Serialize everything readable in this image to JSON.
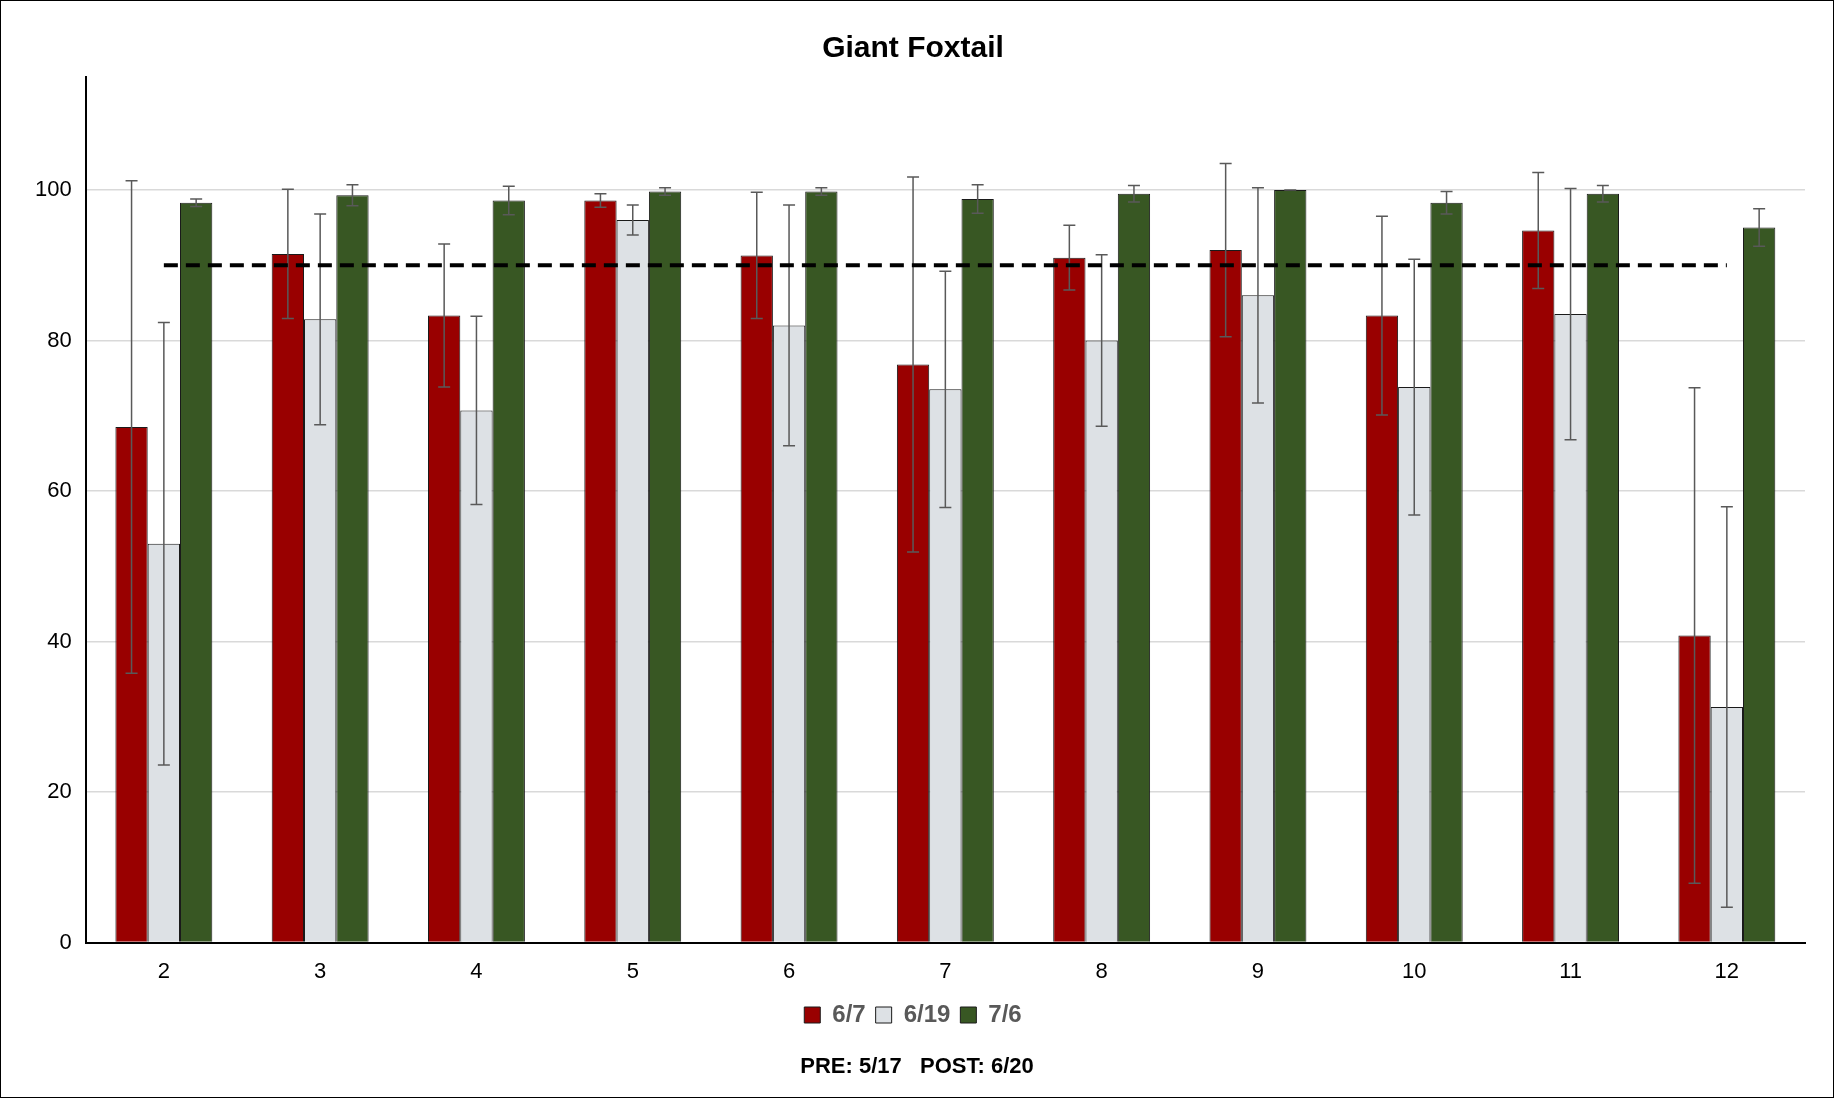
{
  "chart_data": {
    "type": "bar",
    "title": "Giant Foxtail",
    "categories": [
      "2",
      "3",
      "4",
      "5",
      "6",
      "7",
      "8",
      "9",
      "10",
      "11",
      "12"
    ],
    "series": [
      {
        "name": "6/7",
        "color": "#990000",
        "values": [
          68.5,
          91.5,
          83.3,
          98.6,
          91.3,
          76.8,
          91,
          92,
          83.3,
          94.6,
          40.8
        ],
        "errors": [
          32.7,
          8.6,
          9.5,
          0.9,
          8.4,
          24.9,
          4.3,
          11.5,
          13.2,
          7.7,
          32.9
        ]
      },
      {
        "name": "6/19",
        "color": "#dde1e5",
        "values": [
          53,
          82.8,
          70.7,
          96,
          82,
          73.5,
          80,
          86,
          73.8,
          83.5,
          31.3
        ],
        "errors": [
          29.4,
          14,
          12.5,
          2,
          16,
          15.7,
          11.4,
          14.3,
          17,
          16.7,
          26.6
        ]
      },
      {
        "name": "7/6",
        "color": "#385723",
        "values": [
          98.3,
          99.3,
          98.6,
          99.8,
          99.8,
          98.8,
          99.5,
          100,
          98.3,
          99.5,
          95
        ],
        "errors": [
          0.5,
          1.4,
          1.9,
          0.5,
          0.5,
          1.9,
          1.1,
          0,
          1.5,
          1.1,
          2.5
        ]
      }
    ],
    "ylim": [
      0,
      115
    ],
    "yticks": [
      0,
      20,
      40,
      60,
      80,
      100
    ],
    "grid": "y",
    "legend": "bottom",
    "ref_lines": [
      {
        "axis": "y",
        "value": 90,
        "color": "#000000",
        "line_style": "dashed"
      }
    ],
    "annotations": [
      "PRE: 5/17   POST: 6/20"
    ]
  }
}
